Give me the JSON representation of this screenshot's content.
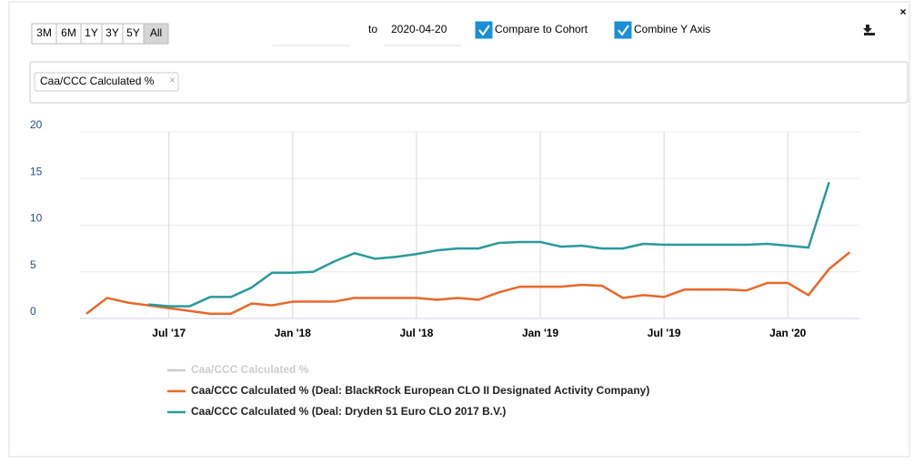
{
  "controls": {
    "range_buttons": [
      "3M",
      "6M",
      "1Y",
      "3Y",
      "5Y",
      "All"
    ],
    "active_range": "All",
    "to_label": "to",
    "end_date": "2020-04-20",
    "checkboxes": [
      {
        "label": "Compare to Cohort",
        "checked": true
      },
      {
        "label": "Combine Y Axis",
        "checked": true
      }
    ]
  },
  "tags": [
    "Caa/CCC Calculated %"
  ],
  "chart_data": {
    "type": "line",
    "x": [
      "2017-03",
      "2017-04",
      "2017-05",
      "2017-06",
      "2017-07",
      "2017-08",
      "2017-09",
      "2017-10",
      "2017-11",
      "2017-12",
      "2018-01",
      "2018-02",
      "2018-03",
      "2018-04",
      "2018-05",
      "2018-06",
      "2018-07",
      "2018-08",
      "2018-09",
      "2018-10",
      "2018-11",
      "2018-12",
      "2019-01",
      "2019-02",
      "2019-03",
      "2019-04",
      "2019-05",
      "2019-06",
      "2019-07",
      "2019-08",
      "2019-09",
      "2019-10",
      "2019-11",
      "2019-12",
      "2020-01",
      "2020-02",
      "2020-03",
      "2020-04"
    ],
    "xlim": [
      "2017-03",
      "2020-05"
    ],
    "xticks": [
      {
        "value": "2017-07",
        "label": "Jul '17"
      },
      {
        "value": "2018-01",
        "label": "Jan '18"
      },
      {
        "value": "2018-07",
        "label": "Jul '18"
      },
      {
        "value": "2019-01",
        "label": "Jan '19"
      },
      {
        "value": "2019-07",
        "label": "Jul '19"
      },
      {
        "value": "2020-01",
        "label": "Jan '20"
      }
    ],
    "ylim": [
      0,
      20
    ],
    "yticks": [
      0,
      5,
      10,
      15,
      20
    ],
    "grid": true,
    "series": [
      {
        "name": "Caa/CCC Calculated %",
        "color": "#cccccc",
        "visible": false,
        "values": [
          null,
          null,
          null,
          null,
          null,
          null,
          null,
          null,
          null,
          null,
          null,
          null,
          null,
          null,
          null,
          null,
          null,
          null,
          null,
          null,
          null,
          null,
          null,
          null,
          null,
          null,
          null,
          null,
          null,
          null,
          null,
          null,
          null,
          null,
          null,
          null,
          null,
          null
        ]
      },
      {
        "name": "Caa/CCC Calculated % (Deal: BlackRock European CLO II Designated Activity Company)",
        "color": "#e8682a",
        "values": [
          0.5,
          2.2,
          1.7,
          1.4,
          1.1,
          0.8,
          0.5,
          0.5,
          1.6,
          1.4,
          1.8,
          1.8,
          1.8,
          2.2,
          2.2,
          2.2,
          2.2,
          2.0,
          2.2,
          2.0,
          2.8,
          3.4,
          3.4,
          3.4,
          3.6,
          3.5,
          2.2,
          2.5,
          2.3,
          3.1,
          3.1,
          3.1,
          3.0,
          3.8,
          3.8,
          2.5,
          5.3,
          7.1
        ]
      },
      {
        "name": "Caa/CCC Calculated % (Deal: Dryden 51 Euro CLO 2017 B.V.)",
        "color": "#2a9a9a",
        "values": [
          null,
          null,
          null,
          1.5,
          1.3,
          1.3,
          2.3,
          2.3,
          3.3,
          4.9,
          4.9,
          5.0,
          6.1,
          7.0,
          6.4,
          6.6,
          6.9,
          7.3,
          7.5,
          7.5,
          8.1,
          8.2,
          8.2,
          7.7,
          7.8,
          7.5,
          7.5,
          8.0,
          7.9,
          7.9,
          7.9,
          7.9,
          7.9,
          8.0,
          7.8,
          7.6,
          14.6,
          null
        ]
      }
    ]
  }
}
